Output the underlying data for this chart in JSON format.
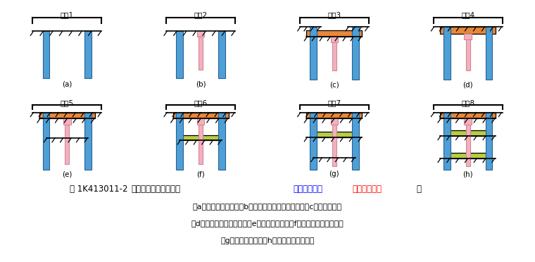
{
  "wall_color": "#4d9fd6",
  "top_slab_color": "#e8883a",
  "mid_slab_color": "#b8cc44",
  "col_color": "#f4b0bc",
  "col_outline": "#d08898",
  "frame_color": "#333333",
  "steps": [
    "步顶1",
    "步顶2",
    "步顶3",
    "步顶4",
    "步顶5",
    "步顶6",
    "步顶7",
    "步顶8"
  ],
  "labels": [
    "(a)",
    "(b)",
    "(c)",
    "(d)",
    "(e)",
    "(f)",
    "(g)",
    "(h)"
  ],
  "title_black1": "图 1K413011-2   ",
  "title_black2": "盖挖逆作法施工流程（",
  "title_blue": "土方、结构均",
  "title_red": "由上至下施工",
  "title_black3": "）",
  "cap1": "（a）构筑围护结构；（b）构筑主体结构中间立柱；（c）构筑顶板；",
  "cap2": "（d）回填土、恢复路面；（e）开挖中层土；（f）构筑上层主体结构；",
  "cap3": "（g）开挖下层土；（h）构筑下层主体结构"
}
